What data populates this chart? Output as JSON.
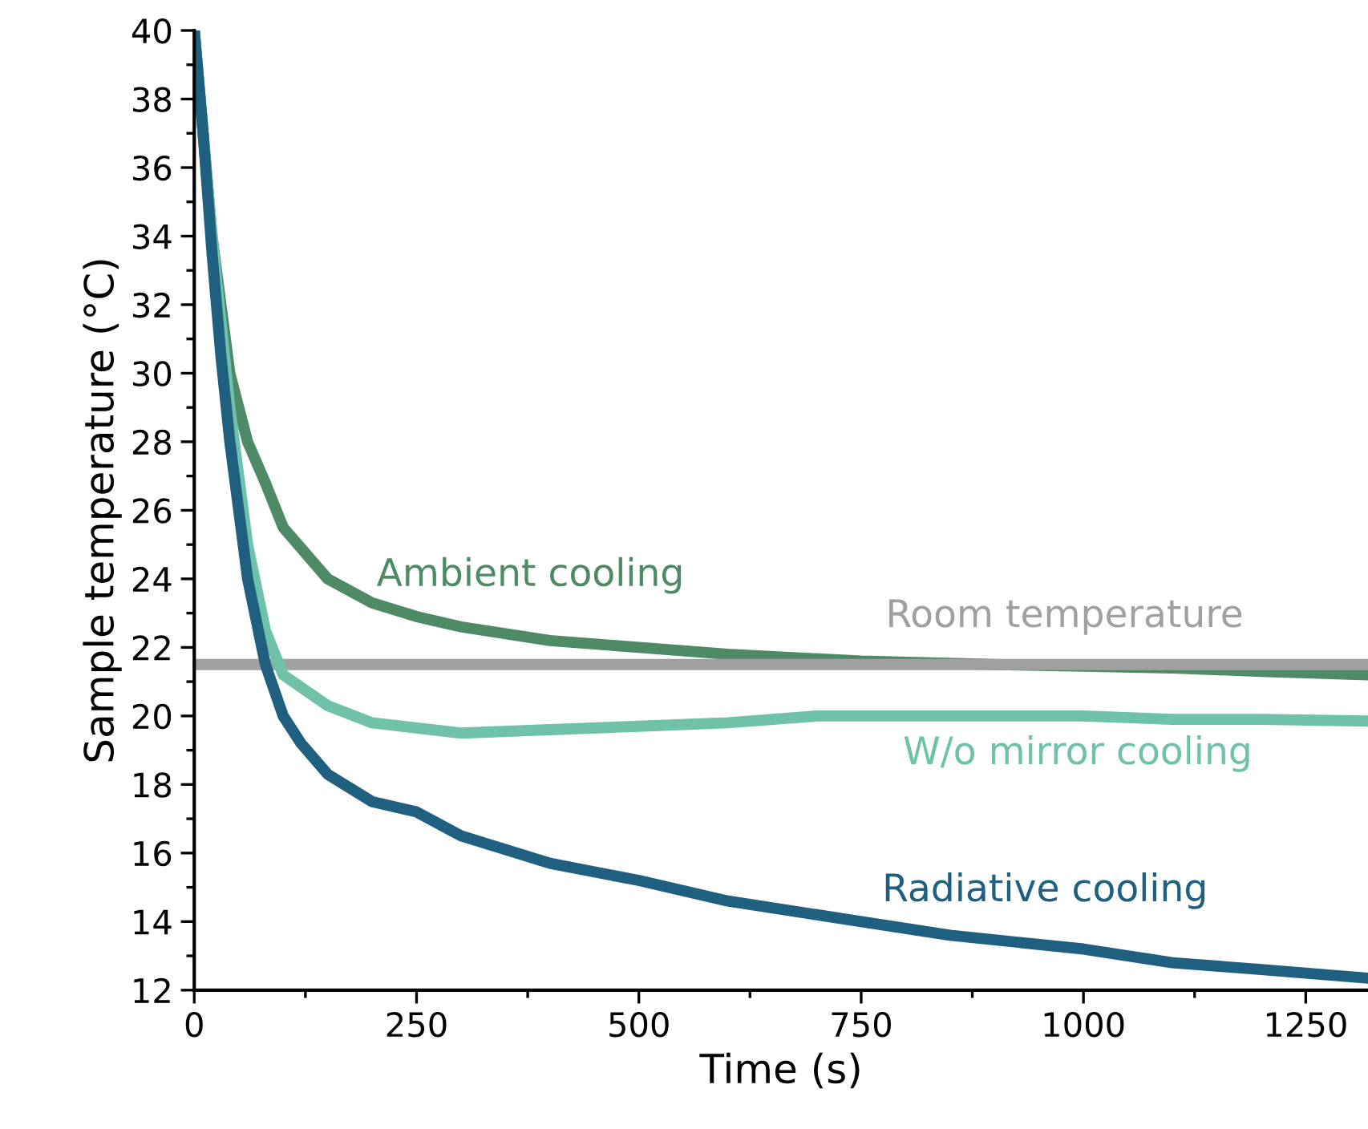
{
  "chart_data": {
    "type": "line",
    "xlabel": "Time (s)",
    "ylabel": "Sample temperature (°C)",
    "xlim": [
      0,
      1320
    ],
    "ylim": [
      12,
      40
    ],
    "xticks": [
      0,
      250,
      500,
      750,
      1000,
      1250
    ],
    "yticks": [
      12,
      14,
      16,
      18,
      20,
      22,
      24,
      26,
      28,
      30,
      32,
      34,
      36,
      38,
      40
    ],
    "grid": false,
    "legend": false,
    "series": [
      {
        "name": "Ambient cooling",
        "color": "#4e8a66",
        "x": [
          0,
          20,
          40,
          60,
          80,
          100,
          150,
          200,
          250,
          300,
          400,
          500,
          600,
          750,
          900,
          1000,
          1100,
          1200,
          1320
        ],
        "values": [
          40,
          34,
          30,
          28,
          26.8,
          25.5,
          24,
          23.3,
          22.9,
          22.6,
          22.2,
          22.0,
          21.8,
          21.6,
          21.5,
          21.45,
          21.4,
          21.3,
          21.2
        ]
      },
      {
        "name": "Room temperature",
        "color": "#a0a0a0",
        "x": [
          0,
          1320
        ],
        "values": [
          21.5,
          21.5
        ]
      },
      {
        "name": "W/o mirror cooling",
        "color": "#6fc2a9",
        "x": [
          0,
          20,
          40,
          60,
          80,
          100,
          150,
          200,
          300,
          400,
          500,
          600,
          700,
          800,
          900,
          1000,
          1100,
          1200,
          1320
        ],
        "values": [
          40,
          34,
          29,
          25,
          22.5,
          21.2,
          20.3,
          19.8,
          19.5,
          19.6,
          19.7,
          19.8,
          20.0,
          20.0,
          20.0,
          20.0,
          19.9,
          19.9,
          19.85
        ]
      },
      {
        "name": "Radiative cooling",
        "color": "#1f6080",
        "x": [
          0,
          10,
          20,
          30,
          40,
          60,
          80,
          100,
          120,
          150,
          200,
          250,
          300,
          400,
          500,
          600,
          750,
          850,
          1000,
          1100,
          1200,
          1320
        ],
        "values": [
          40,
          37,
          33.5,
          30.5,
          28,
          24,
          21.5,
          20,
          19.2,
          18.3,
          17.5,
          17.2,
          16.5,
          15.7,
          15.2,
          14.6,
          14.0,
          13.6,
          13.2,
          12.8,
          12.6,
          12.35
        ]
      }
    ]
  }
}
